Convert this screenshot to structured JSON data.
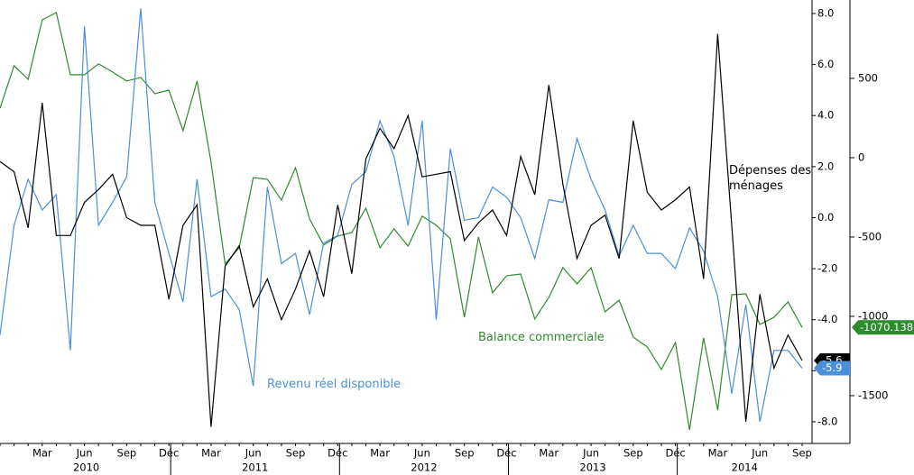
{
  "chart_data": {
    "type": "line",
    "categories": [
      null,
      null,
      null,
      "Mar",
      null,
      null,
      "Jun",
      null,
      null,
      "Sep",
      null,
      null,
      "Déc",
      null,
      null,
      "Mar",
      null,
      null,
      "Jun",
      null,
      null,
      "Sep",
      null,
      null,
      "Déc",
      null,
      null,
      "Mar",
      null,
      null,
      "Jun",
      null,
      null,
      "Sep",
      null,
      null,
      "Déc",
      null,
      null,
      "Mar",
      null,
      null,
      "Jun",
      null,
      null,
      "Sep",
      null,
      null,
      "Déc",
      null,
      null,
      "Mar",
      null,
      null,
      "Jun",
      null,
      null,
      "Sep"
    ],
    "x_groups": [
      "2010",
      "2011",
      "2012",
      "2013",
      "2014"
    ],
    "ylim": [
      -8.78,
      8.53
    ],
    "yticks": [
      {
        "value": 8,
        "label": "8.0"
      },
      {
        "value": 6,
        "label": "6.0"
      },
      {
        "value": 4,
        "label": "4.0"
      },
      {
        "value": 2,
        "label": "2.0"
      },
      {
        "value": 0,
        "label": "0.0"
      },
      {
        "value": -2,
        "label": "-2.0"
      },
      {
        "value": -4,
        "label": "-4.0"
      },
      {
        "value": -6,
        "label": "-6.0"
      },
      {
        "value": -8,
        "label": "-8.0"
      }
    ],
    "y2lim": [
      -1790,
      994
    ],
    "y2ticks": [
      500,
      0,
      -500,
      -1000,
      -1500
    ],
    "grid": false,
    "series": [
      {
        "name": "Dépenses des ménages",
        "color": "#000000",
        "values": [
          2.2,
          1.8,
          -0.4,
          4.5,
          -0.7,
          -0.7,
          0.6,
          1.1,
          1.7,
          0.0,
          -0.3,
          -0.3,
          -3.2,
          -0.3,
          0.5,
          -8.2,
          -1.9,
          -1.1,
          -3.5,
          -2.4,
          -4.0,
          -2.8,
          -1.3,
          -3.1,
          0.5,
          -2.2,
          2.3,
          3.5,
          2.7,
          4.0,
          1.6,
          1.7,
          1.8,
          -0.9,
          -0.2,
          0.3,
          -0.7,
          2.4,
          0.9,
          5.2,
          1.3,
          -1.6,
          -0.3,
          0.1,
          -1.6,
          3.8,
          1.0,
          0.3,
          0.7,
          1.2,
          -2.4,
          7.2,
          -0.3,
          -8.0,
          -3.0,
          -5.9,
          -4.6,
          -5.6
        ]
      },
      {
        "name": "Revenu réel disponible",
        "color": "#4a90d9",
        "values": [
          -4.6,
          -0.3,
          1.5,
          0.3,
          0.9,
          -5.2,
          7.5,
          -0.3,
          0.6,
          1.6,
          8.2,
          0.6,
          -1.4,
          -3.3,
          1.5,
          -3.1,
          -2.8,
          -3.6,
          -6.6,
          1.2,
          -1.8,
          -1.4,
          -3.8,
          -1.0,
          -0.7,
          1.3,
          1.8,
          3.8,
          2.4,
          -0.3,
          3.8,
          -4.0,
          2.7,
          -0.1,
          0.0,
          1.2,
          0.8,
          0.0,
          -1.6,
          0.7,
          0.6,
          3.1,
          1.5,
          0.3,
          -1.5,
          -0.3,
          -1.4,
          -1.4,
          -2.0,
          -0.4,
          -1.3,
          -3.1,
          -6.9,
          -3.4,
          -8.0,
          -5.2,
          -5.2,
          -5.9
        ]
      },
      {
        "name": "Balance commerciale",
        "color": "#2e8b2e",
        "axis": "y2",
        "values": [
          312,
          580,
          494,
          869,
          915,
          523,
          523,
          591,
          540,
          483,
          506,
          403,
          426,
          170,
          483,
          -28,
          -670,
          -568,
          -125,
          -136,
          -267,
          -63,
          -386,
          -551,
          -494,
          -472,
          -318,
          -568,
          -449,
          -557,
          -369,
          -426,
          -511,
          -1006,
          -500,
          -852,
          -744,
          -733,
          -1017,
          -881,
          -693,
          -795,
          -693,
          -972,
          -898,
          -1131,
          -1193,
          -1335,
          -1165,
          -1716,
          -1136,
          -1591,
          -864,
          -858,
          -1051,
          -1006,
          -909,
          -1070.138
        ]
      }
    ]
  }
}
